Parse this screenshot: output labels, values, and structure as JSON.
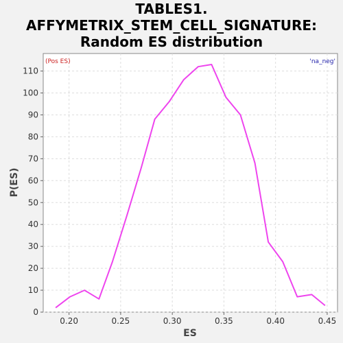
{
  "chart_data": {
    "type": "line",
    "title_lines": [
      "TABLES1.",
      "AFFYMETRIX_STEM_CELL_SIGNATURE:",
      "Random ES distribution"
    ],
    "xlabel": "ES",
    "ylabel": "P(ES)",
    "xlim": [
      0.175,
      0.46
    ],
    "ylim": [
      0,
      118
    ],
    "x_ticks": [
      0.2,
      0.25,
      0.3,
      0.35,
      0.4,
      0.45
    ],
    "x_tick_labels": [
      "0.20",
      "0.25",
      "0.30",
      "0.35",
      "0.40",
      "0.45"
    ],
    "y_ticks": [
      0,
      10,
      20,
      30,
      40,
      50,
      60,
      70,
      80,
      90,
      100,
      110
    ],
    "y_tick_labels": [
      "0",
      "10",
      "20",
      "30",
      "40",
      "50",
      "60",
      "70",
      "80",
      "90",
      "100",
      "110"
    ],
    "grid": true,
    "annotations": {
      "top_left": "(Pos ES)",
      "top_right": "'na_neg'"
    },
    "colors": {
      "line": "#ee44ee",
      "top_left": "#cc2222",
      "top_right": "#2222aa"
    },
    "series": [
      {
        "x": [
          0.187,
          0.201,
          0.215,
          0.229,
          0.242,
          0.256,
          0.27,
          0.283,
          0.297,
          0.311,
          0.325,
          0.338,
          0.352,
          0.366,
          0.38,
          0.393,
          0.407,
          0.421,
          0.435,
          0.448
        ],
        "y": [
          2,
          7,
          10,
          6,
          23,
          44,
          66,
          88,
          96,
          106,
          112,
          113,
          98,
          90,
          68,
          32,
          23,
          7,
          8,
          3
        ]
      }
    ]
  }
}
